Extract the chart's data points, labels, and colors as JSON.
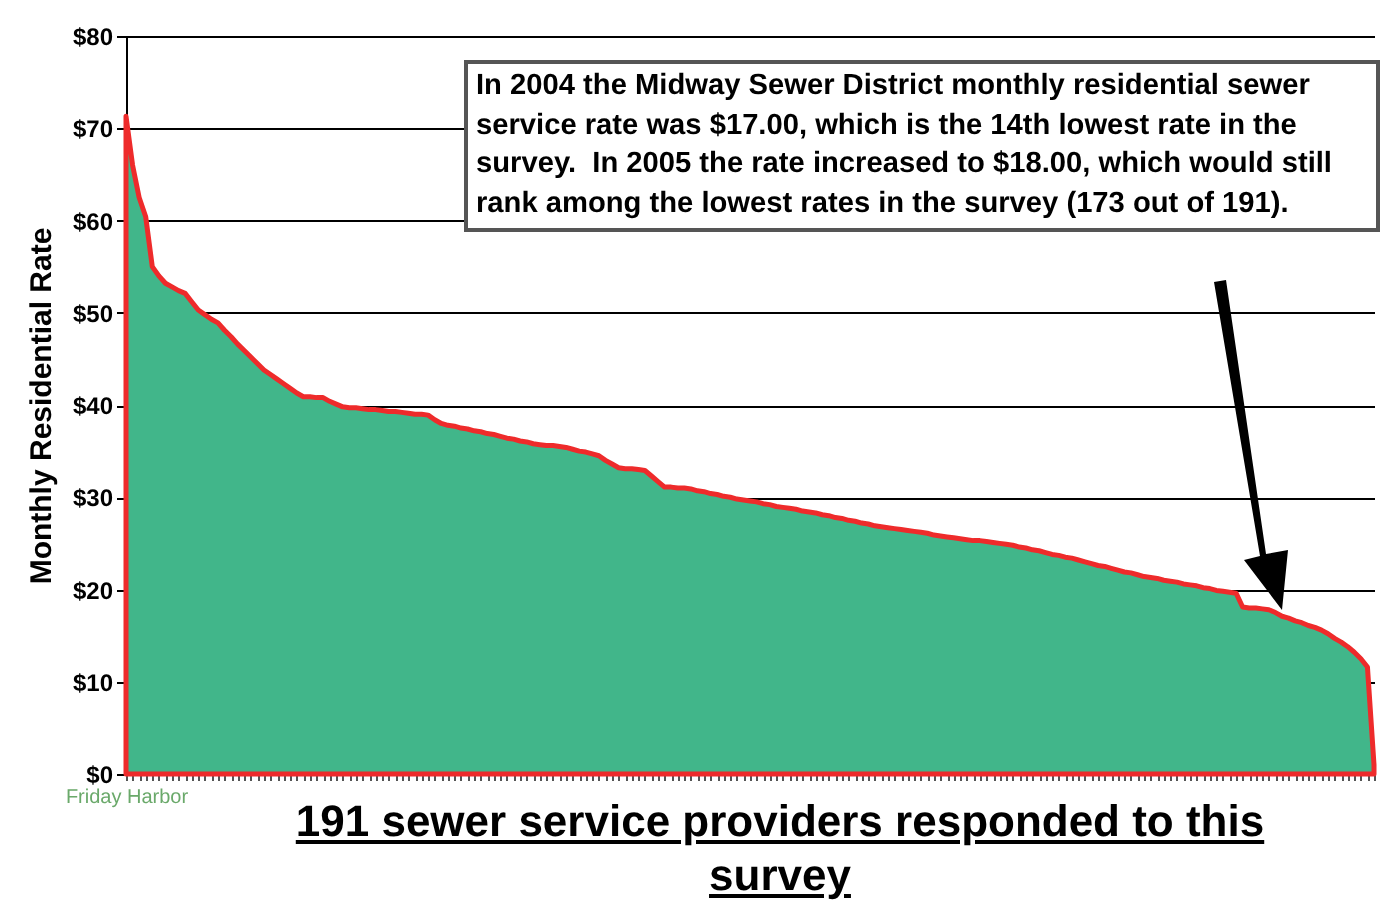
{
  "chart_data": {
    "type": "area",
    "xlabel": "191 sewer service providers responded to this survey",
    "ylabel": "Monthly Residential Rate",
    "categories": [
      "Friday Harbor",
      null,
      null,
      null,
      null,
      null,
      null,
      null,
      null,
      null,
      null,
      null,
      null,
      null,
      null,
      null,
      null,
      null,
      null,
      null,
      null,
      null,
      null,
      null,
      null,
      null,
      null,
      null,
      null,
      null,
      null,
      null,
      null,
      null,
      null,
      null,
      null,
      null,
      null,
      null,
      null,
      null,
      null,
      null,
      null,
      null,
      null,
      null,
      null,
      null,
      null,
      null,
      null,
      null,
      null,
      null,
      null,
      null,
      null,
      null,
      null,
      null,
      null,
      null,
      null,
      null,
      null,
      null,
      null,
      null,
      null,
      null,
      null,
      null,
      null,
      null,
      null,
      null,
      null,
      null,
      null,
      null,
      null,
      null,
      null,
      null,
      null,
      null,
      null,
      null,
      null,
      null,
      null,
      null,
      null,
      null,
      null,
      null,
      null,
      null,
      null,
      null,
      null,
      null,
      null,
      null,
      null,
      null,
      null,
      null,
      null,
      null,
      null,
      null,
      null,
      null,
      null,
      null,
      null,
      null,
      null,
      null,
      null,
      null,
      null,
      null,
      null,
      null,
      null,
      null,
      null,
      null,
      null,
      null,
      null,
      null,
      null,
      null,
      null,
      null,
      null,
      null,
      null,
      null,
      null,
      null,
      null,
      null,
      null,
      null,
      null,
      null,
      null,
      null,
      null,
      null,
      null,
      null,
      null,
      null,
      null,
      null,
      null,
      null,
      null,
      null,
      null,
      null,
      null,
      null,
      null,
      null,
      null,
      null,
      null,
      null,
      null,
      null,
      null,
      null,
      null,
      null,
      null,
      null,
      null,
      null,
      null,
      null,
      null,
      null,
      null
    ],
    "series": [
      {
        "color": "#ee2b2b",
        "values": [
          71.3,
          66,
          62.5,
          60.4,
          55,
          54,
          53.2,
          52.8,
          52.4,
          52.1,
          51.2,
          50.3,
          49.8,
          49.3,
          48.9,
          48.1,
          47.4,
          46.6,
          45.9,
          45.2,
          44.5,
          43.8,
          43.3,
          42.8,
          42.3,
          41.8,
          41.3,
          40.9,
          40.9,
          40.8,
          40.8,
          40.4,
          40.1,
          39.8,
          39.7,
          39.7,
          39.6,
          39.5,
          39.5,
          39.4,
          39.3,
          39.3,
          39.2,
          39.1,
          39,
          39,
          38.9,
          38.4,
          38,
          37.8,
          37.7,
          37.5,
          37.4,
          37.2,
          37.1,
          36.9,
          36.8,
          36.6,
          36.4,
          36.3,
          36.1,
          36,
          35.8,
          35.7,
          35.6,
          35.6,
          35.5,
          35.4,
          35.2,
          35,
          34.9,
          34.7,
          34.5,
          34,
          33.6,
          33.2,
          33.1,
          33.1,
          33,
          32.9,
          32.3,
          31.7,
          31.1,
          31.1,
          31,
          31,
          30.9,
          30.7,
          30.6,
          30.4,
          30.3,
          30.1,
          30,
          29.8,
          29.7,
          29.6,
          29.5,
          29.3,
          29.2,
          29,
          28.9,
          28.8,
          28.7,
          28.5,
          28.4,
          28.3,
          28.1,
          28,
          27.8,
          27.7,
          27.5,
          27.4,
          27.2,
          27.1,
          26.9,
          26.8,
          26.7,
          26.6,
          26.5,
          26.4,
          26.3,
          26.2,
          26.1,
          25.9,
          25.8,
          25.7,
          25.6,
          25.5,
          25.4,
          25.3,
          25.3,
          25.2,
          25.1,
          25,
          24.9,
          24.8,
          24.6,
          24.5,
          24.3,
          24.2,
          24,
          23.8,
          23.7,
          23.5,
          23.4,
          23.2,
          23,
          22.8,
          22.6,
          22.5,
          22.3,
          22.1,
          21.9,
          21.8,
          21.6,
          21.4,
          21.3,
          21.2,
          21,
          20.9,
          20.8,
          20.6,
          20.5,
          20.4,
          20.2,
          20.1,
          19.9,
          19.8,
          19.7,
          19.6,
          18.1,
          18,
          18,
          17.9,
          17.8,
          17.5,
          17.1,
          16.9,
          16.6,
          16.4,
          16.1,
          15.9,
          15.6,
          15.2,
          14.7,
          14.3,
          13.8,
          13.2,
          12.5,
          11.6,
          1
        ]
      }
    ],
    "ylim": [
      0,
      80
    ],
    "yticks": [
      {
        "value": 0,
        "label": "$0"
      },
      {
        "value": 10,
        "label": "$10"
      },
      {
        "value": 20,
        "label": "$20"
      },
      {
        "value": 30,
        "label": "$30"
      },
      {
        "value": 40,
        "label": "$40"
      },
      {
        "value": 50,
        "label": "$50"
      },
      {
        "value": 60,
        "label": "$60"
      },
      {
        "value": 70,
        "label": "$70"
      },
      {
        "value": 80,
        "label": "$80"
      }
    ],
    "grid": "y",
    "annotations": [
      "In 2004 the Midway Sewer District monthly residential sewer service rate was $17.00, which is the 14th lowest rate in the survey.  In 2005 the rate increased to $18.00, which would still rank among the lowest rates in the survey (173 out of 191)."
    ]
  }
}
